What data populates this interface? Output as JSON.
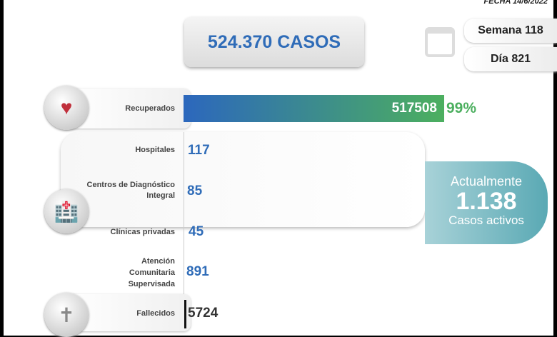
{
  "header": {
    "date": "FECHA 14/6/2022",
    "total_cases": "524.370 CASOS",
    "week": "Semana 118",
    "day": "Día 821",
    "calendar_icon": "calendar-icon"
  },
  "recovered": {
    "label": "Recuperados",
    "value": "517508",
    "percent": "99%",
    "icon": "heart-pulse-icon",
    "colors": [
      "#2c67bd",
      "#4caf5f"
    ]
  },
  "locations": [
    {
      "label": "Hospitales",
      "value": "117"
    },
    {
      "label": "Centros de Diagnóstico Integral",
      "value": "85"
    },
    {
      "label": "Clínicas privadas",
      "value": "45"
    },
    {
      "label": "Atención Comunitaria Supervisada",
      "value": "891"
    }
  ],
  "active": {
    "title": "Actualmente",
    "value": "1.138",
    "subtitle": "Casos activos",
    "color": "#5aa9b4"
  },
  "deceased": {
    "label": "Fallecidos",
    "value": "5724",
    "icon": "tombstone-icon"
  }
}
